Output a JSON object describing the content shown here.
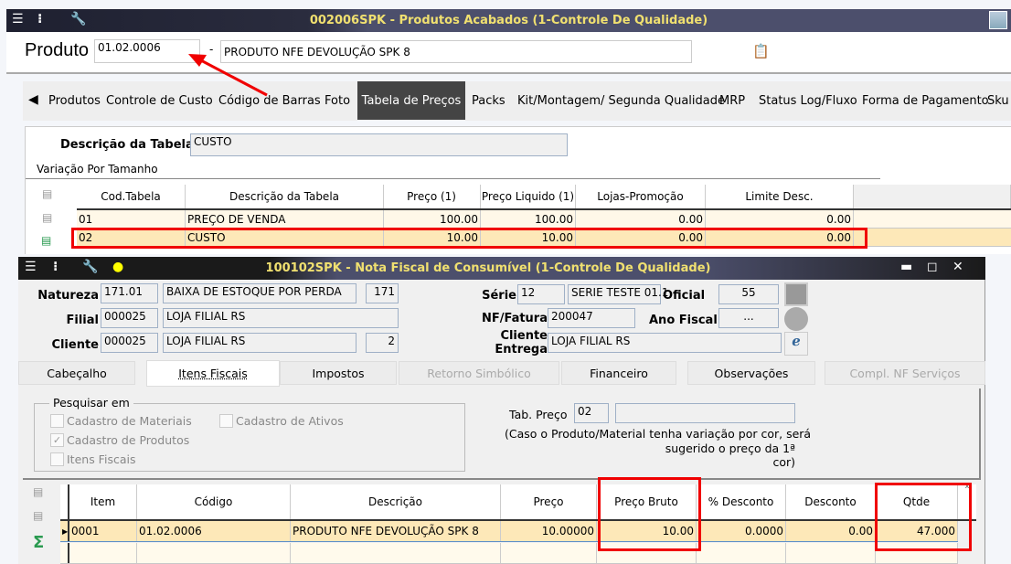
{
  "back": {
    "title": "002006SPK - Produtos Acabados (1-Controle De Qualidade)",
    "produto_label": "Produto",
    "produto_code": "01.02.0006",
    "dash": "-",
    "produto_desc": "PRODUTO NFE DEVOLUÇÃO SPK 8",
    "tabs": [
      "Produtos",
      "Controle de Custo",
      "Código de Barras",
      "Foto",
      "Tabela de Preços",
      "Packs",
      "Kit/Montagem/ Segunda Qualidade",
      "MRP",
      "Status Log/Fluxo",
      "Forma de Pagamento",
      "Sku"
    ],
    "active_tab": "Tabela de Preços",
    "descricao_label": "Descrição da Tabela",
    "descricao_value": "CUSTO",
    "variacao_label": "Variação Por Tamanho",
    "grid": {
      "headers": [
        "Cod.Tabela",
        "Descrição da Tabela",
        "Preço (1)",
        "Preço Liquido (1)",
        "Lojas-Promoção",
        "Limite Desc."
      ],
      "rows": [
        [
          "01",
          "PREÇO DE VENDA",
          "100.00",
          "100.00",
          "0.00",
          "0.00"
        ],
        [
          "02",
          "CUSTO",
          "10.00",
          "10.00",
          "0.00",
          "0.00"
        ]
      ]
    }
  },
  "front": {
    "title": "100102SPK - Nota Fiscal de Consumível (1-Controle De Qualidade)",
    "natureza": {
      "label": "Natureza",
      "code": "171.01",
      "desc": "BAIXA DE ESTOQUE POR PERDA",
      "num": "171"
    },
    "filial": {
      "label": "Filial",
      "code": "000025",
      "desc": "LOJA FILIAL RS"
    },
    "cliente": {
      "label": "Cliente",
      "code": "000025",
      "desc": "LOJA FILIAL RS",
      "num": "2"
    },
    "serie": {
      "label": "Série",
      "code": "12",
      "desc": "SERIE TESTE 01.1"
    },
    "oficial": {
      "label": "Oficial",
      "value": "55"
    },
    "nf": {
      "label": "NF/Fatura",
      "value": "200047"
    },
    "ano": {
      "label": "Ano Fiscal",
      "value": "..."
    },
    "entrega": {
      "label1": "Cliente",
      "label2": "Entrega",
      "value": "LOJA FILIAL RS"
    },
    "tabs": [
      "Cabeçalho",
      "Itens Fiscais",
      "Impostos",
      "Retorno Simbólico",
      "Financeiro",
      "Observações",
      "Compl. NF Serviços"
    ],
    "pesquisar": {
      "legend": "Pesquisar em",
      "options": [
        {
          "label": "Cadastro de Materiais",
          "checked": false
        },
        {
          "label": "Cadastro de Ativos",
          "checked": false
        },
        {
          "label": "Cadastro de Produtos",
          "checked": true
        },
        {
          "label": "Itens Fiscais",
          "checked": false
        }
      ]
    },
    "tab_preco": {
      "label": "Tab. Preço",
      "value": "02",
      "note1": "(Caso o Produto/Material tenha variação por cor, será",
      "note2": "sugerido o preço da 1ª cor)"
    },
    "grid": {
      "headers": [
        "Item",
        "Código",
        "Descrição",
        "Preço",
        "Preço Bruto",
        "% Desconto",
        "Desconto",
        "Qtde"
      ],
      "rows": [
        [
          "0001",
          "01.02.0006",
          "PRODUTO NFE DEVOLUÇÃO SPK 8",
          "10.00000",
          "10.00",
          "0.0000",
          "0.00",
          "47.000"
        ]
      ]
    }
  },
  "colors": {
    "title_text": "#f0e070",
    "highlight": "#fde8b8",
    "annotation": "#f00001"
  }
}
